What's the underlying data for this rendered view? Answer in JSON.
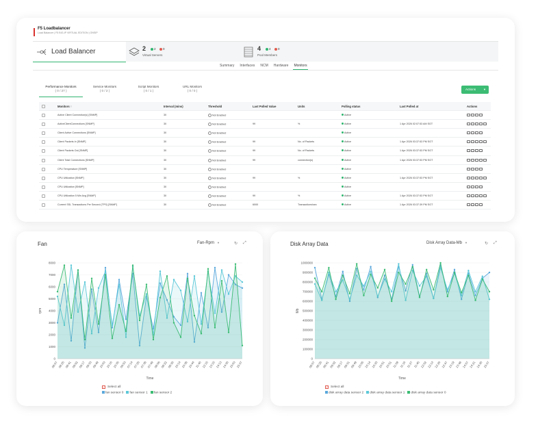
{
  "header": {
    "title": "F5 Loadbalancer",
    "subtitle": "Load Balancer | F5 BIG-IP VIRTUAL EDITION | ONSIP"
  },
  "summary": {
    "title": "Load Balancer",
    "virtual_servers": {
      "count": "2",
      "green": "2",
      "red": "0",
      "label": "Virtual Servers"
    },
    "pool_members": {
      "count": "4",
      "green": "4",
      "red": "0",
      "label": "Pool Members"
    }
  },
  "tabs": [
    "Summary",
    "Interfaces",
    "NCM",
    "Hardware",
    "Monitors"
  ],
  "monitor_tabs": [
    {
      "label": "Performance Monitors",
      "count": "( 0 / 27 )"
    },
    {
      "label": "Service Monitors",
      "count": "( 0 / 2 )"
    },
    {
      "label": "Script Monitors",
      "count": "( 0 / 1 )"
    },
    {
      "label": "URL Monitors",
      "count": "( 0 / 0 )"
    }
  ],
  "actions_label": "Actions",
  "table": {
    "headers": [
      "Monitors ↑",
      "Interval (mins)",
      "Threshold",
      "Last Polled Value",
      "Units",
      "Polling status",
      "Last Polled at",
      "Actions"
    ],
    "rows": [
      [
        "Active Client Connection(s) [SNMP]",
        "30",
        "Not Enabled",
        "",
        "",
        "Active",
        ""
      ],
      [
        "ActiveClientConnections [SNMP]",
        "30",
        "Not Enabled",
        "99",
        "%",
        "Active",
        "1 Apr 2026 02:07:53 AM SGT"
      ],
      [
        "Client Active Connections [SNMP]",
        "30",
        "Not Enabled",
        "",
        "",
        "Active",
        ""
      ],
      [
        "Client Packets In [SNMP]",
        "30",
        "Not Enabled",
        "99",
        "No. of Packets",
        "Active",
        "1 Apr 2026 03:37:53 PM SGT"
      ],
      [
        "Client Packets Out [SNMP]",
        "30",
        "Not Enabled",
        "99",
        "No. of Packets",
        "Active",
        "1 Apr 2026 03:37:53 PM SGT"
      ],
      [
        "Client Total Connections [SNMP]",
        "30",
        "Not Enabled",
        "99",
        "connection(s)",
        "Active",
        "1 Apr 2026 03:37:53 PM SGT"
      ],
      [
        "CPU Temperature [SNMP]",
        "30",
        "Not Enabled",
        "",
        "",
        "Active",
        ""
      ],
      [
        "CPU Utilization [SNMP]",
        "30",
        "Not Enabled",
        "99",
        "%",
        "Active",
        "1 Apr 2026 03:37:53 PM SGT"
      ],
      [
        "CPU Utilization [SNMP]",
        "30",
        "Not Enabled",
        "",
        "",
        "Active",
        ""
      ],
      [
        "CPU Utilization 5 Min Avg [SNMP]",
        "30",
        "Not Enabled",
        "99",
        "%",
        "Active",
        "1 Apr 2026 03:37:53 PM SGT"
      ],
      [
        "Current SSL Transactions Per Second (TPS) [SNMP]",
        "30",
        "Not Enabled",
        "6000",
        "Transactions/sec",
        "Active",
        "1 Apr 2026 03:37:39 PM SGT"
      ]
    ]
  },
  "fan_chart": {
    "title": "Fan",
    "selector": "Fan-Rpm",
    "select_all": "Select all",
    "chart_data": {
      "type": "line",
      "xlabel": "Time",
      "ylabel": "rpm",
      "ylim": [
        0,
        8000
      ],
      "yticks": [
        "0",
        "1000",
        "2000",
        "3000",
        "4000",
        "5000",
        "6000",
        "7000",
        "8000"
      ],
      "categories": [
        "08:07",
        "08:25",
        "08:41",
        "09:02",
        "09:17",
        "09:33",
        "09:49",
        "10:03",
        "10:16",
        "10:35",
        "06:53",
        "07:14",
        "07:26",
        "07:38",
        "07:49",
        "08:06",
        "08:22",
        "08:30",
        "10:14",
        "10:38",
        "10:44",
        "11:40",
        "12:15",
        "13:15",
        "14:13",
        "14:30",
        "15:03",
        "15:37"
      ],
      "series": [
        {
          "name": "fan sensor 0",
          "color": "#5aa8dc",
          "values": [
            3000,
            6200,
            1500,
            7400,
            900,
            5800,
            2200,
            7600,
            2600,
            6600,
            3300,
            7100,
            1100,
            5200,
            2500,
            6300,
            4900,
            3500,
            2800,
            7100,
            1400,
            5500,
            2600,
            7600,
            3900,
            7000,
            6200,
            5900
          ]
        },
        {
          "name": "fan sensor 1",
          "color": "#5cc8d8",
          "values": [
            5200,
            2800,
            7800,
            3900,
            6400,
            2100,
            5900,
            7300,
            2800,
            6200,
            1800,
            7700,
            3600,
            5400,
            2000,
            7300,
            3400,
            6600,
            5700,
            3100,
            6900,
            2900,
            7300,
            3800,
            7400,
            5400,
            6900,
            6400
          ]
        },
        {
          "name": "fan sensor 2",
          "color": "#3cbc74",
          "values": [
            5600,
            7800,
            3400,
            7400,
            1600,
            6700,
            2900,
            7000,
            1700,
            4500,
            2300,
            7800,
            3200,
            6200,
            1600,
            5100,
            6900,
            3000,
            1800,
            6700,
            3600,
            2100,
            7500,
            2600,
            6500,
            2200,
            7900,
            1100
          ]
        }
      ]
    },
    "legend": [
      "fan sensor 0",
      "fan sensor 1",
      "fan sensor 2"
    ]
  },
  "disk_chart": {
    "title": "Disk Array Data",
    "selector": "Disk Array Data-Mb",
    "select_all": "Select all",
    "chart_data": {
      "type": "line",
      "xlabel": "Time",
      "ylabel": "Mb",
      "ylim": [
        0,
        1000000
      ],
      "yticks": [
        "0",
        "100000",
        "200000",
        "300000",
        "400000",
        "500000",
        "600000",
        "700000",
        "800000",
        "900000",
        "1000000"
      ],
      "categories": [
        "08:07",
        "08:25",
        "08:41",
        "09:02",
        "09:17",
        "09:31",
        "09:49",
        "10:05",
        "10:14",
        "10:33",
        "10:51",
        "10:51",
        "11:09",
        "11:16",
        "11:27",
        "11:45",
        "12:02",
        "12:13",
        "12:26",
        "12:47",
        "13:19",
        "13:48",
        "14:07",
        "14:21",
        "14:30",
        "15:37"
      ],
      "series": [
        {
          "name": "disk array data sensor 2",
          "color": "#5aa8dc",
          "values": [
            950000,
            620000,
            880000,
            650000,
            910000,
            600000,
            940000,
            720000,
            960000,
            640000,
            870000,
            620000,
            960000,
            710000,
            980000,
            650000,
            890000,
            630000,
            980000,
            700000,
            930000,
            620000,
            890000,
            660000,
            840000,
            900000
          ]
        },
        {
          "name": "disk array data sensor 1",
          "color": "#5cc8d8",
          "values": [
            780000,
            610000,
            900000,
            700000,
            820000,
            620000,
            870000,
            760000,
            910000,
            650000,
            830000,
            700000,
            990000,
            610000,
            920000,
            760000,
            860000,
            630000,
            950000,
            720000,
            890000,
            660000,
            920000,
            700000,
            860000,
            620000
          ]
        },
        {
          "name": "disk array data sensor 0",
          "color": "#3cbc74",
          "values": [
            840000,
            700000,
            950000,
            620000,
            870000,
            680000,
            990000,
            660000,
            880000,
            740000,
            930000,
            600000,
            900000,
            780000,
            960000,
            640000,
            930000,
            720000,
            1000000,
            650000,
            900000,
            690000,
            870000,
            610000,
            830000,
            700000
          ]
        }
      ]
    },
    "legend": [
      "disk array data sensor 2",
      "disk array data sensor 1",
      "disk array data sensor 0"
    ]
  }
}
